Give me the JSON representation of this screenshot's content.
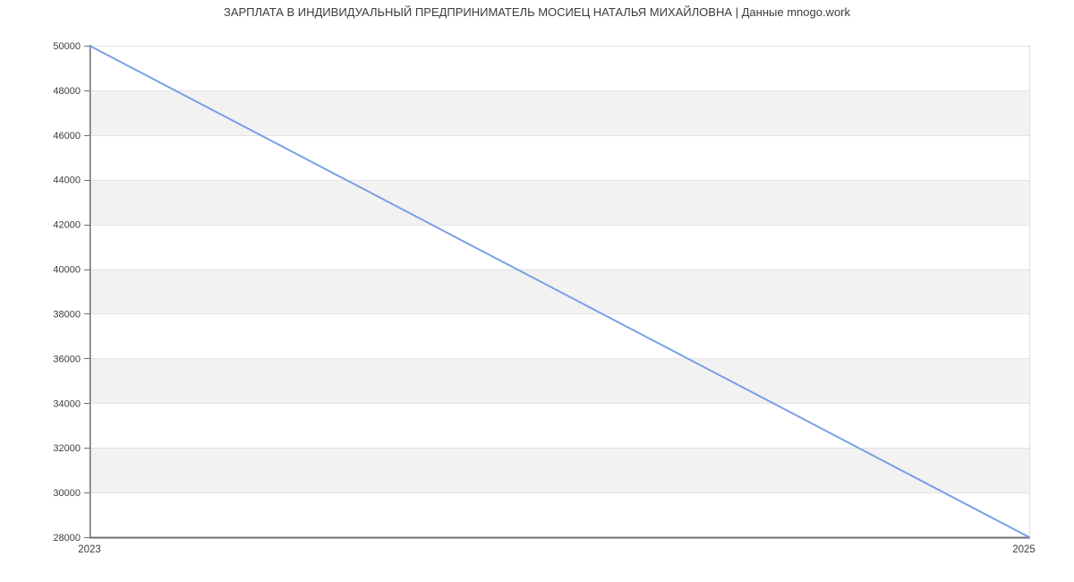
{
  "title": "ЗАРПЛАТА В ИНДИВИДУАЛЬНЫЙ ПРЕДПРИНИМАТЕЛЬ МОСИЕЦ НАТАЛЬЯ МИХАЙЛОВНА | Данные mnogo.work",
  "colors": {
    "line": "#7c9fe6",
    "band": "#f2f2f2",
    "grid": "#e3e3e3",
    "axis": "#707070",
    "border": "#e0e0e0",
    "tick_label": "#3d3d3d",
    "title": "#3c3c3c",
    "background": "#ffffff"
  },
  "chart_data": {
    "type": "line",
    "title": "ЗАРПЛАТА В ИНДИВИДУАЛЬНЫЙ ПРЕДПРИНИМАТЕЛЬ МОСИЕЦ НАТАЛЬЯ МИХАЙЛОВНА | Данные mnogo.work",
    "x": [
      2023,
      2025
    ],
    "xticks": [
      "2023",
      "2025"
    ],
    "series": [
      {
        "name": "ЗАРПЛАТА",
        "values": [
          50000,
          28000
        ]
      }
    ],
    "yticks": [
      28000,
      30000,
      32000,
      34000,
      36000,
      38000,
      40000,
      42000,
      44000,
      46000,
      48000,
      50000
    ],
    "ylim": [
      28000,
      50000
    ],
    "xlabel": "",
    "ylabel": "",
    "legend": "none",
    "grid": "horizontal",
    "background_bands": "alternating white/gray horizontal stripes between gridlines, gray starting at 48000-46000"
  }
}
